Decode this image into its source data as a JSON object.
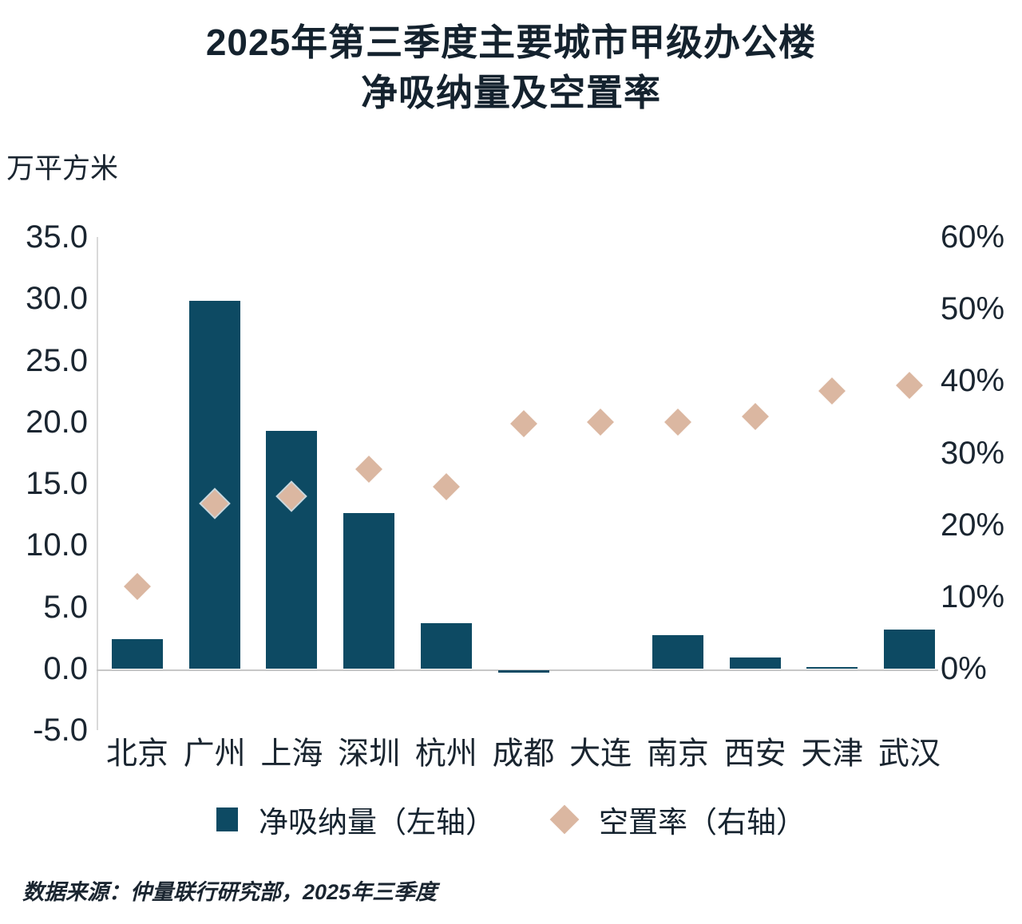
{
  "chart_data": {
    "type": "bar",
    "title_line1": "2025年第三季度主要城市甲级办公楼",
    "title_line2": "净吸纳量及空置率",
    "unit_label": "万平方米",
    "categories": [
      "北京",
      "广州",
      "上海",
      "深圳",
      "杭州",
      "成都",
      "大连",
      "南京",
      "西安",
      "天津",
      "武汉"
    ],
    "series": [
      {
        "name": "净吸纳量（左轴）",
        "type": "bar",
        "axis": "left",
        "color": "#0d4a63",
        "values": [
          2.4,
          29.8,
          19.3,
          12.6,
          3.7,
          -0.2,
          0.0,
          2.7,
          0.9,
          0.1,
          3.2
        ]
      },
      {
        "name": "空置率（右轴）",
        "type": "scatter",
        "marker": "diamond",
        "axis": "right",
        "color": "#dbb7a1",
        "values": [
          11.4,
          23.0,
          24.0,
          27.7,
          25.3,
          34.1,
          34.3,
          34.3,
          35.1,
          38.6,
          39.4
        ]
      }
    ],
    "left_axis": {
      "ticks": [
        "35.0",
        "30.0",
        "25.0",
        "20.0",
        "15.0",
        "10.0",
        "5.0",
        "0.0",
        "-5.0"
      ],
      "tick_values": [
        35,
        30,
        25,
        20,
        15,
        10,
        5,
        0,
        -5
      ],
      "range": [
        -5,
        35
      ]
    },
    "right_axis": {
      "ticks": [
        "60%",
        "50%",
        "40%",
        "30%",
        "20%",
        "10%",
        "0%"
      ],
      "tick_values": [
        60,
        50,
        40,
        30,
        20,
        10,
        0
      ],
      "range": [
        0,
        60
      ]
    },
    "grid": false,
    "legend_position": "bottom",
    "source": "数据来源：仲量联行研究部，2025年三季度"
  }
}
